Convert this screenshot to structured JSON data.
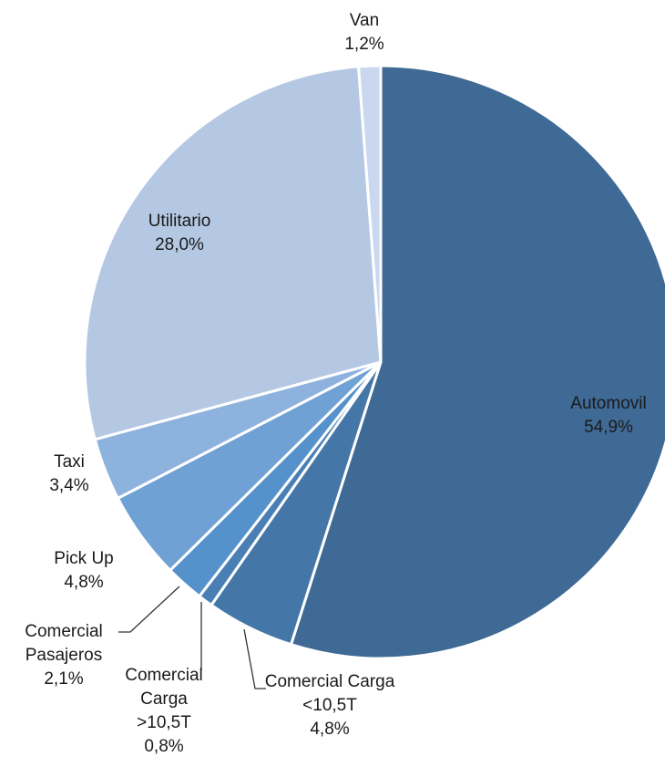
{
  "chart_data": {
    "type": "pie",
    "categories": [
      "Automovil",
      "Comercial Carga <10,5T",
      "Comercial Carga >10,5T",
      "Comercial Pasajeros",
      "Pick Up",
      "Taxi",
      "Utilitario",
      "Van"
    ],
    "values": [
      54.9,
      4.8,
      0.8,
      2.1,
      4.8,
      3.4,
      28.0,
      1.2
    ],
    "value_labels": [
      "54,9%",
      "4,8%",
      "0,8%",
      "2,1%",
      "4,8%",
      "3,4%",
      "28,0%",
      "1,2%"
    ],
    "colors": [
      "#3f6a96",
      "#4576a8",
      "#4a7fb5",
      "#5592cb",
      "#6fa1d4",
      "#8eb2de",
      "#b4c8e4",
      "#c9d8ee"
    ]
  }
}
